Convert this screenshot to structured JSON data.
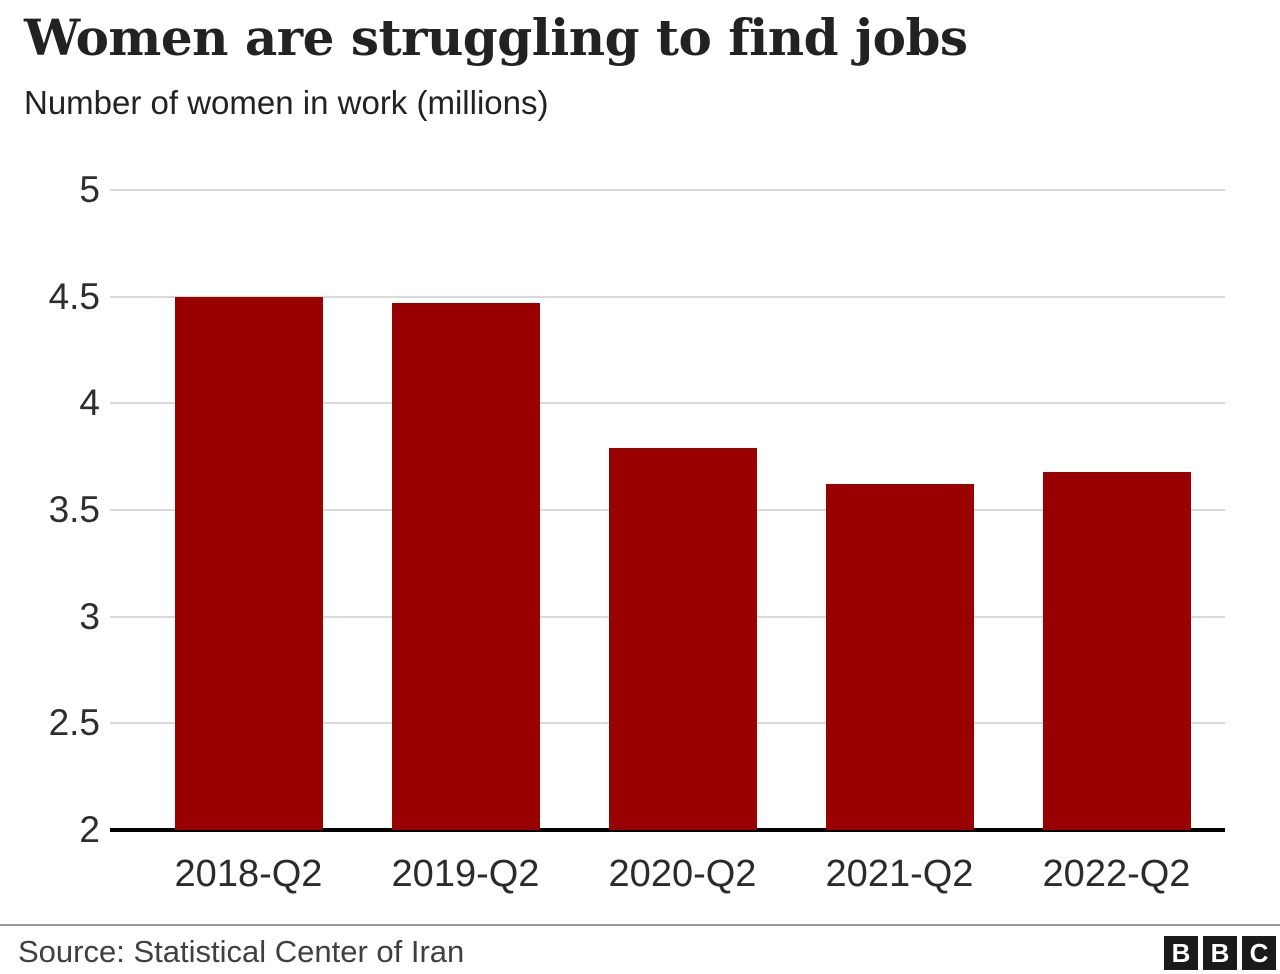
{
  "header": {
    "title": "Women are struggling to find jobs",
    "subtitle": "Number of women in work (millions)"
  },
  "chart_data": {
    "type": "bar",
    "categories": [
      "2018-Q2",
      "2019-Q2",
      "2020-Q2",
      "2021-Q2",
      "2022-Q2"
    ],
    "values": [
      4.5,
      4.47,
      3.79,
      3.62,
      3.68
    ],
    "title": "Women are struggling to find jobs",
    "subtitle": "Number of women in work (millions)",
    "xlabel": "",
    "ylabel": "Number of women in work (millions)",
    "ylim": [
      2,
      5
    ],
    "yticks": [
      2,
      2.5,
      3,
      3.5,
      4,
      4.5,
      5
    ],
    "grid": true,
    "legend": "none",
    "bar_color": "#990000",
    "gridline_color": "#d9d9d9",
    "axis_color": "#000000"
  },
  "footer": {
    "source": "Source: Statistical Center of Iran",
    "logo": {
      "letters": [
        "B",
        "B",
        "C"
      ],
      "bg": "#1a1a1a",
      "fg": "#ffffff"
    }
  }
}
